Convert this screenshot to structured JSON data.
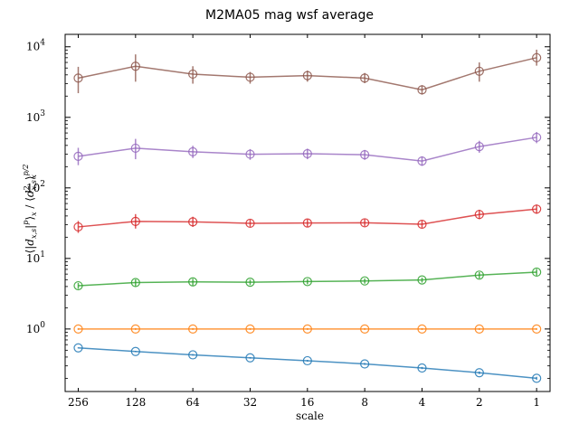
{
  "chart_data": {
    "type": "line",
    "title": "M2MA05 mag wsf average",
    "xlabel": "scale",
    "ylabel": "⟨|d_{x,s}|^p⟩_x / ⟨d²_{x,s}⟩_x^{p/2}",
    "x_scale": "log2-reversed",
    "y_scale": "log",
    "x": [
      256,
      128,
      64,
      32,
      16,
      8,
      4,
      2,
      1
    ],
    "x_tick_labels": [
      "256",
      "128",
      "64",
      "32",
      "16",
      "8",
      "4",
      "2",
      "1"
    ],
    "xlim": [
      300,
      0.85
    ],
    "ylim": [
      0.13,
      15000
    ],
    "y_ticks": [
      {
        "base": "10",
        "exp": "0",
        "value": 1
      },
      {
        "base": "10",
        "exp": "1",
        "value": 10
      },
      {
        "base": "10",
        "exp": "2",
        "value": 100
      },
      {
        "base": "10",
        "exp": "3",
        "value": 1000
      },
      {
        "base": "10",
        "exp": "4",
        "value": 10000
      }
    ],
    "grid": false,
    "legend": "none",
    "series": [
      {
        "color": "#1f77b4",
        "values": [
          0.54,
          0.48,
          0.43,
          0.39,
          0.355,
          0.32,
          0.28,
          0.24,
          0.2
        ],
        "err_low": [
          0.01,
          0.01,
          0.01,
          0.01,
          0.01,
          0.01,
          0.01,
          0.01,
          0.01
        ],
        "err_high": [
          0.01,
          0.01,
          0.01,
          0.01,
          0.01,
          0.01,
          0.01,
          0.01,
          0.01
        ]
      },
      {
        "color": "#ff7f0e",
        "values": [
          1,
          1,
          1,
          1,
          1,
          1,
          1,
          1,
          1
        ],
        "err_low": [
          0.03,
          0.03,
          0.03,
          0.03,
          0.03,
          0.03,
          0.03,
          0.03,
          0.03
        ],
        "err_high": [
          0.03,
          0.03,
          0.03,
          0.03,
          0.03,
          0.03,
          0.03,
          0.03,
          0.03
        ]
      },
      {
        "color": "#2ca02c",
        "values": [
          4.1,
          4.55,
          4.65,
          4.6,
          4.7,
          4.8,
          4.95,
          5.8,
          6.4
        ],
        "err_low": [
          0.4,
          0.5,
          0.5,
          0.4,
          0.4,
          0.4,
          0.4,
          0.6,
          0.7
        ],
        "err_high": [
          0.4,
          0.5,
          0.5,
          0.4,
          0.4,
          0.4,
          0.4,
          0.6,
          0.7
        ]
      },
      {
        "color": "#d62728",
        "values": [
          28,
          33.5,
          33,
          31.5,
          31.8,
          32,
          30.5,
          42,
          50
        ],
        "err_low": [
          5,
          7,
          5,
          3.5,
          3.5,
          3.5,
          3.5,
          6,
          7
        ],
        "err_high": [
          6,
          9,
          6,
          4,
          4,
          4,
          4,
          7,
          8
        ]
      },
      {
        "color": "#9467bd",
        "values": [
          280,
          365,
          325,
          300,
          305,
          295,
          240,
          385,
          520
        ],
        "err_low": [
          70,
          110,
          60,
          50,
          50,
          45,
          35,
          70,
          90
        ],
        "err_high": [
          90,
          130,
          70,
          55,
          55,
          50,
          40,
          80,
          100
        ]
      },
      {
        "color": "#8c564b",
        "values": [
          3600,
          5300,
          4100,
          3700,
          3900,
          3600,
          2450,
          4500,
          7000
        ],
        "err_low": [
          1400,
          2100,
          1100,
          700,
          700,
          550,
          350,
          1300,
          1600
        ],
        "err_high": [
          1600,
          2500,
          1200,
          700,
          700,
          650,
          400,
          1500,
          2100
        ]
      }
    ]
  }
}
